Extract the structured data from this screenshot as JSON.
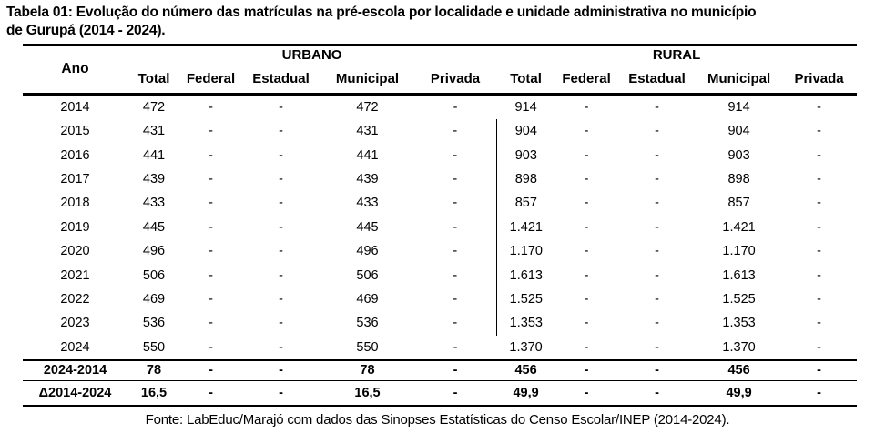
{
  "page": {
    "background": "#ffffff",
    "text_color": "#000000",
    "border_color": "#000000"
  },
  "title": {
    "line1": "Tabela 01: Evolução do número das matrículas na pré-escola por localidade e unidade administrativa no município",
    "line2": "de Gurupá (2014 - 2024)."
  },
  "table": {
    "year_header": "Ano",
    "groups": [
      {
        "label": "URBANO",
        "key": "urbano"
      },
      {
        "label": "RURAL",
        "key": "rural"
      }
    ],
    "sub_headers": [
      "Total",
      "Federal",
      "Estadual",
      "Municipal",
      "Privada"
    ],
    "rows": [
      {
        "ano": "2014",
        "urbano": [
          "472",
          "-",
          "-",
          "472",
          "-"
        ],
        "rural": [
          "914",
          "-",
          "-",
          "914",
          "-"
        ]
      },
      {
        "ano": "2015",
        "urbano": [
          "431",
          "-",
          "-",
          "431",
          "-"
        ],
        "rural": [
          "904",
          "-",
          "-",
          "904",
          "-"
        ]
      },
      {
        "ano": "2016",
        "urbano": [
          "441",
          "-",
          "-",
          "441",
          "-"
        ],
        "rural": [
          "903",
          "-",
          "-",
          "903",
          "-"
        ]
      },
      {
        "ano": "2017",
        "urbano": [
          "439",
          "-",
          "-",
          "439",
          "-"
        ],
        "rural": [
          "898",
          "-",
          "-",
          "898",
          "-"
        ]
      },
      {
        "ano": "2018",
        "urbano": [
          "433",
          "-",
          "-",
          "433",
          "-"
        ],
        "rural": [
          "857",
          "-",
          "-",
          "857",
          "-"
        ]
      },
      {
        "ano": "2019",
        "urbano": [
          "445",
          "-",
          "-",
          "445",
          "-"
        ],
        "rural": [
          "1.421",
          "-",
          "-",
          "1.421",
          "-"
        ]
      },
      {
        "ano": "2020",
        "urbano": [
          "496",
          "-",
          "-",
          "496",
          "-"
        ],
        "rural": [
          "1.170",
          "-",
          "-",
          "1.170",
          "-"
        ]
      },
      {
        "ano": "2021",
        "urbano": [
          "506",
          "-",
          "-",
          "506",
          "-"
        ],
        "rural": [
          "1.613",
          "-",
          "-",
          "1.613",
          "-"
        ]
      },
      {
        "ano": "2022",
        "urbano": [
          "469",
          "-",
          "-",
          "469",
          "-"
        ],
        "rural": [
          "1.525",
          "-",
          "-",
          "1.525",
          "-"
        ]
      },
      {
        "ano": "2023",
        "urbano": [
          "536",
          "-",
          "-",
          "536",
          "-"
        ],
        "rural": [
          "1.353",
          "-",
          "-",
          "1.353",
          "-"
        ]
      },
      {
        "ano": "2024",
        "urbano": [
          "550",
          "-",
          "-",
          "550",
          "-"
        ],
        "rural": [
          "1.370",
          "-",
          "-",
          "1.370",
          "-"
        ]
      }
    ],
    "summary_rows": [
      {
        "label": "2024-2014",
        "urbano": [
          "78",
          "-",
          "-",
          "78",
          "-"
        ],
        "rural": [
          "456",
          "-",
          "-",
          "456",
          "-"
        ]
      },
      {
        "label": "Δ2014-2024",
        "urbano": [
          "16,5",
          "-",
          "-",
          "16,5",
          "-"
        ],
        "rural": [
          "49,9",
          "-",
          "-",
          "49,9",
          "-"
        ]
      }
    ]
  },
  "source": "Fonte: LabEduc/Marajó com dados das Sinopses Estatísticas do Censo Escolar/INEP (2014-2024)."
}
